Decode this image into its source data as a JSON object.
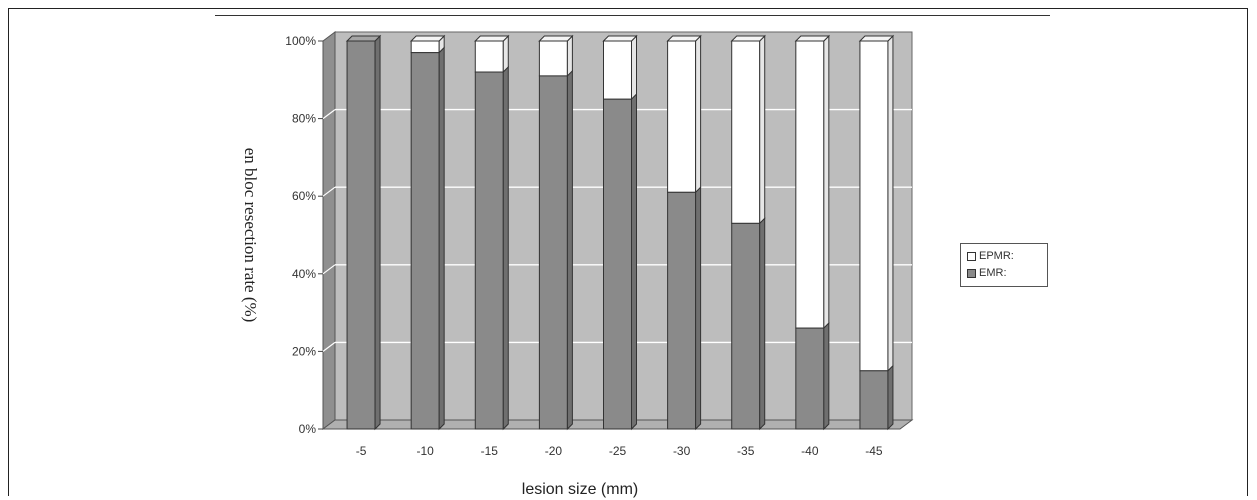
{
  "chart_data": {
    "type": "bar",
    "stacked": true,
    "percent_stacked": true,
    "categories": [
      "-5",
      "-10",
      "-15",
      "-20",
      "-25",
      "-30",
      "-35",
      "-40",
      "-45"
    ],
    "series": [
      {
        "name": "EMR:",
        "values": [
          100,
          97,
          92,
          91,
          85,
          61,
          53,
          26,
          15
        ]
      },
      {
        "name": "EPMR:",
        "values": [
          0,
          3,
          8,
          9,
          15,
          39,
          47,
          74,
          85
        ]
      }
    ],
    "y_ticks": [
      "0%",
      "20%",
      "40%",
      "60%",
      "80%",
      "100%"
    ],
    "ylim": [
      0,
      100
    ],
    "xlabel": "lesion size (mm)",
    "ylabel": "en bloc resection rate (%)",
    "grid": true,
    "legend_position": "right",
    "colors": {
      "emr": "#8a8a8a",
      "epmr": "#ffffff",
      "plot_wall": "#bdbdbd",
      "floor": "#b0b0b0",
      "grid": "#ffffff"
    }
  }
}
